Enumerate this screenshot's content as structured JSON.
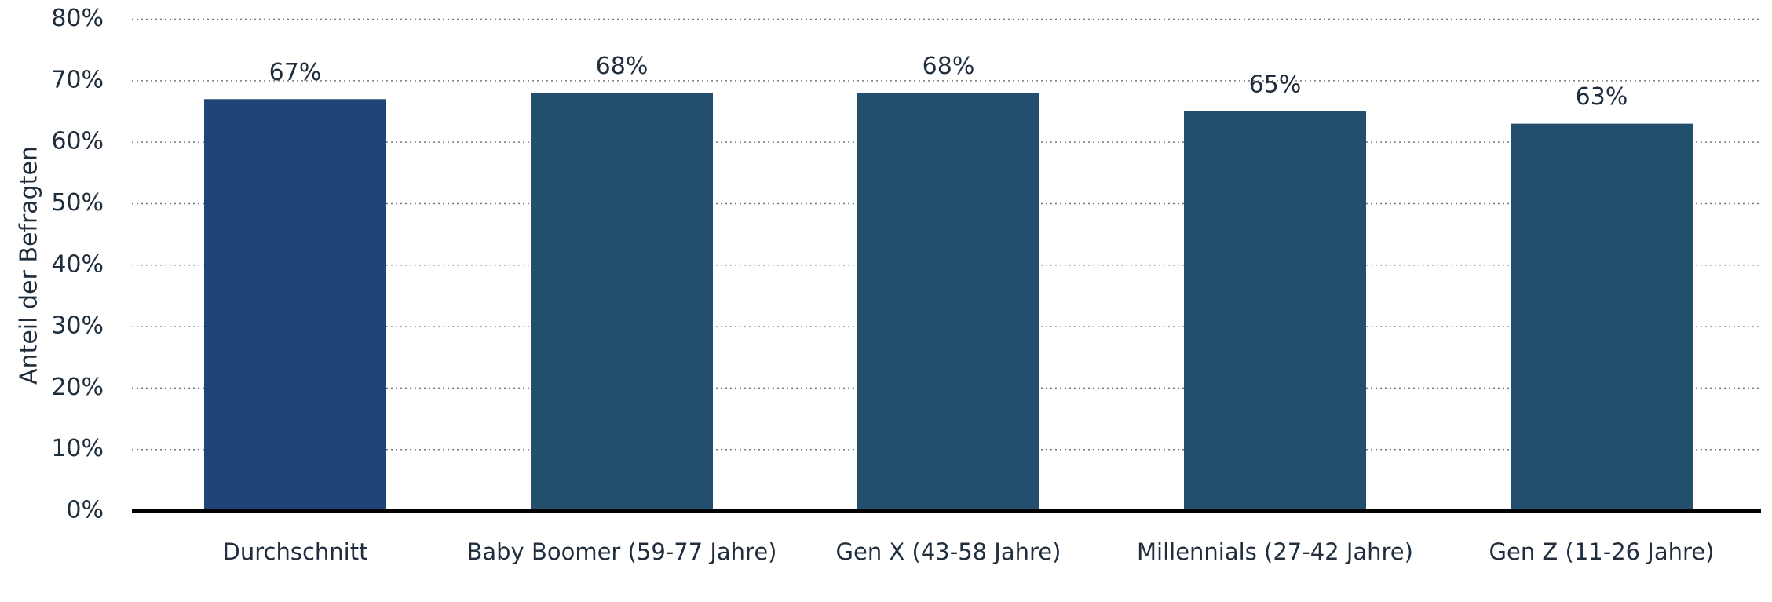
{
  "chart_data": {
    "type": "bar",
    "y_label": "Anteil der Befragten",
    "categories": [
      "Durchschnitt",
      "Baby Boomer (59-77 Jahre)",
      "Gen X (43-58 Jahre)",
      "Millennials (27-42 Jahre)",
      "Gen Z (11-26 Jahre)"
    ],
    "values": [
      67,
      68,
      68,
      65,
      63
    ],
    "value_labels": [
      "67%",
      "68%",
      "68%",
      "65%",
      "63%"
    ],
    "colors": [
      "#1f4477",
      "#234e6e",
      "#234e6e",
      "#234e6e",
      "#234e6e"
    ],
    "ylim": [
      0,
      80
    ],
    "yticks": [
      {
        "value": 0,
        "label": "0%"
      },
      {
        "value": 10,
        "label": "10%"
      },
      {
        "value": 20,
        "label": "20%"
      },
      {
        "value": 30,
        "label": "30%"
      },
      {
        "value": 40,
        "label": "40%"
      },
      {
        "value": 50,
        "label": "50%"
      },
      {
        "value": 60,
        "label": "60%"
      },
      {
        "value": 70,
        "label": "70%"
      },
      {
        "value": 80,
        "label": "80%"
      }
    ],
    "grid": true
  }
}
